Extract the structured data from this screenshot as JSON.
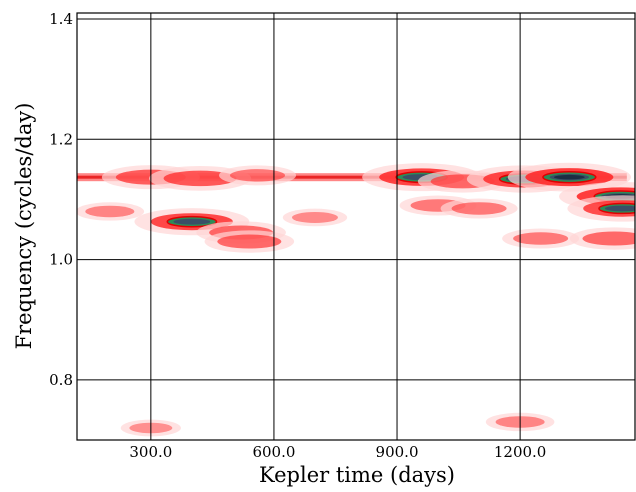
{
  "chart_data": {
    "type": "heatmap",
    "title": "",
    "xlabel": "Kepler time (days)",
    "ylabel": "Frequency (cycles/day)",
    "xlim": [
      120,
      1480
    ],
    "ylim": [
      0.7,
      1.41
    ],
    "x_ticks": [
      {
        "value": 300,
        "label": "300.0"
      },
      {
        "value": 600,
        "label": "600.0"
      },
      {
        "value": 900,
        "label": "900.0"
      },
      {
        "value": 1200,
        "label": "1200.0"
      }
    ],
    "y_ticks": [
      {
        "value": 0.8,
        "label": "0.8"
      },
      {
        "value": 1.0,
        "label": "1.0"
      },
      {
        "value": 1.2,
        "label": "1.2"
      },
      {
        "value": 1.4,
        "label": "1.4"
      }
    ],
    "grid": true,
    "colormap": [
      "#ffffff",
      "#ffd6d6",
      "#ff2a2a",
      "#e00000",
      "#2e8b57",
      "#3a4f66",
      "#1c2f44"
    ],
    "features": [
      {
        "kind": "ridge",
        "x": [
          120,
          1000
        ],
        "freq": 1.137,
        "power": 0.55
      },
      {
        "kind": "ridge",
        "x": [
          900,
          1460
        ],
        "freq": 1.137,
        "power": 0.75
      },
      {
        "kind": "peak",
        "x": 300,
        "freq": 1.137,
        "power": 0.7
      },
      {
        "kind": "peak",
        "x": 420,
        "freq": 1.135,
        "power": 0.75
      },
      {
        "kind": "peak",
        "x": 560,
        "freq": 1.14,
        "power": 0.45
      },
      {
        "kind": "peak",
        "x": 960,
        "freq": 1.137,
        "power": 0.95
      },
      {
        "kind": "peak",
        "x": 1060,
        "freq": 1.13,
        "power": 0.6
      },
      {
        "kind": "peak",
        "x": 1210,
        "freq": 1.134,
        "power": 0.9
      },
      {
        "kind": "peak",
        "x": 1320,
        "freq": 1.137,
        "power": 1.0
      },
      {
        "kind": "peak",
        "x": 1445,
        "freq": 1.105,
        "power": 1.0
      },
      {
        "kind": "peak",
        "x": 1450,
        "freq": 1.085,
        "power": 0.85
      },
      {
        "kind": "peak",
        "x": 1430,
        "freq": 1.035,
        "power": 0.6
      },
      {
        "kind": "peak",
        "x": 400,
        "freq": 1.063,
        "power": 0.9
      },
      {
        "kind": "peak",
        "x": 520,
        "freq": 1.045,
        "power": 0.6
      },
      {
        "kind": "peak",
        "x": 540,
        "freq": 1.03,
        "power": 0.6
      },
      {
        "kind": "peak",
        "x": 1000,
        "freq": 1.09,
        "power": 0.45
      },
      {
        "kind": "peak",
        "x": 1100,
        "freq": 1.085,
        "power": 0.45
      },
      {
        "kind": "peak",
        "x": 1250,
        "freq": 1.035,
        "power": 0.45
      },
      {
        "kind": "peak",
        "x": 200,
        "freq": 1.08,
        "power": 0.35
      },
      {
        "kind": "peak",
        "x": 700,
        "freq": 1.07,
        "power": 0.3
      },
      {
        "kind": "peak",
        "x": 1200,
        "freq": 0.73,
        "power": 0.35
      },
      {
        "kind": "peak",
        "x": 300,
        "freq": 0.72,
        "power": 0.25
      }
    ]
  }
}
